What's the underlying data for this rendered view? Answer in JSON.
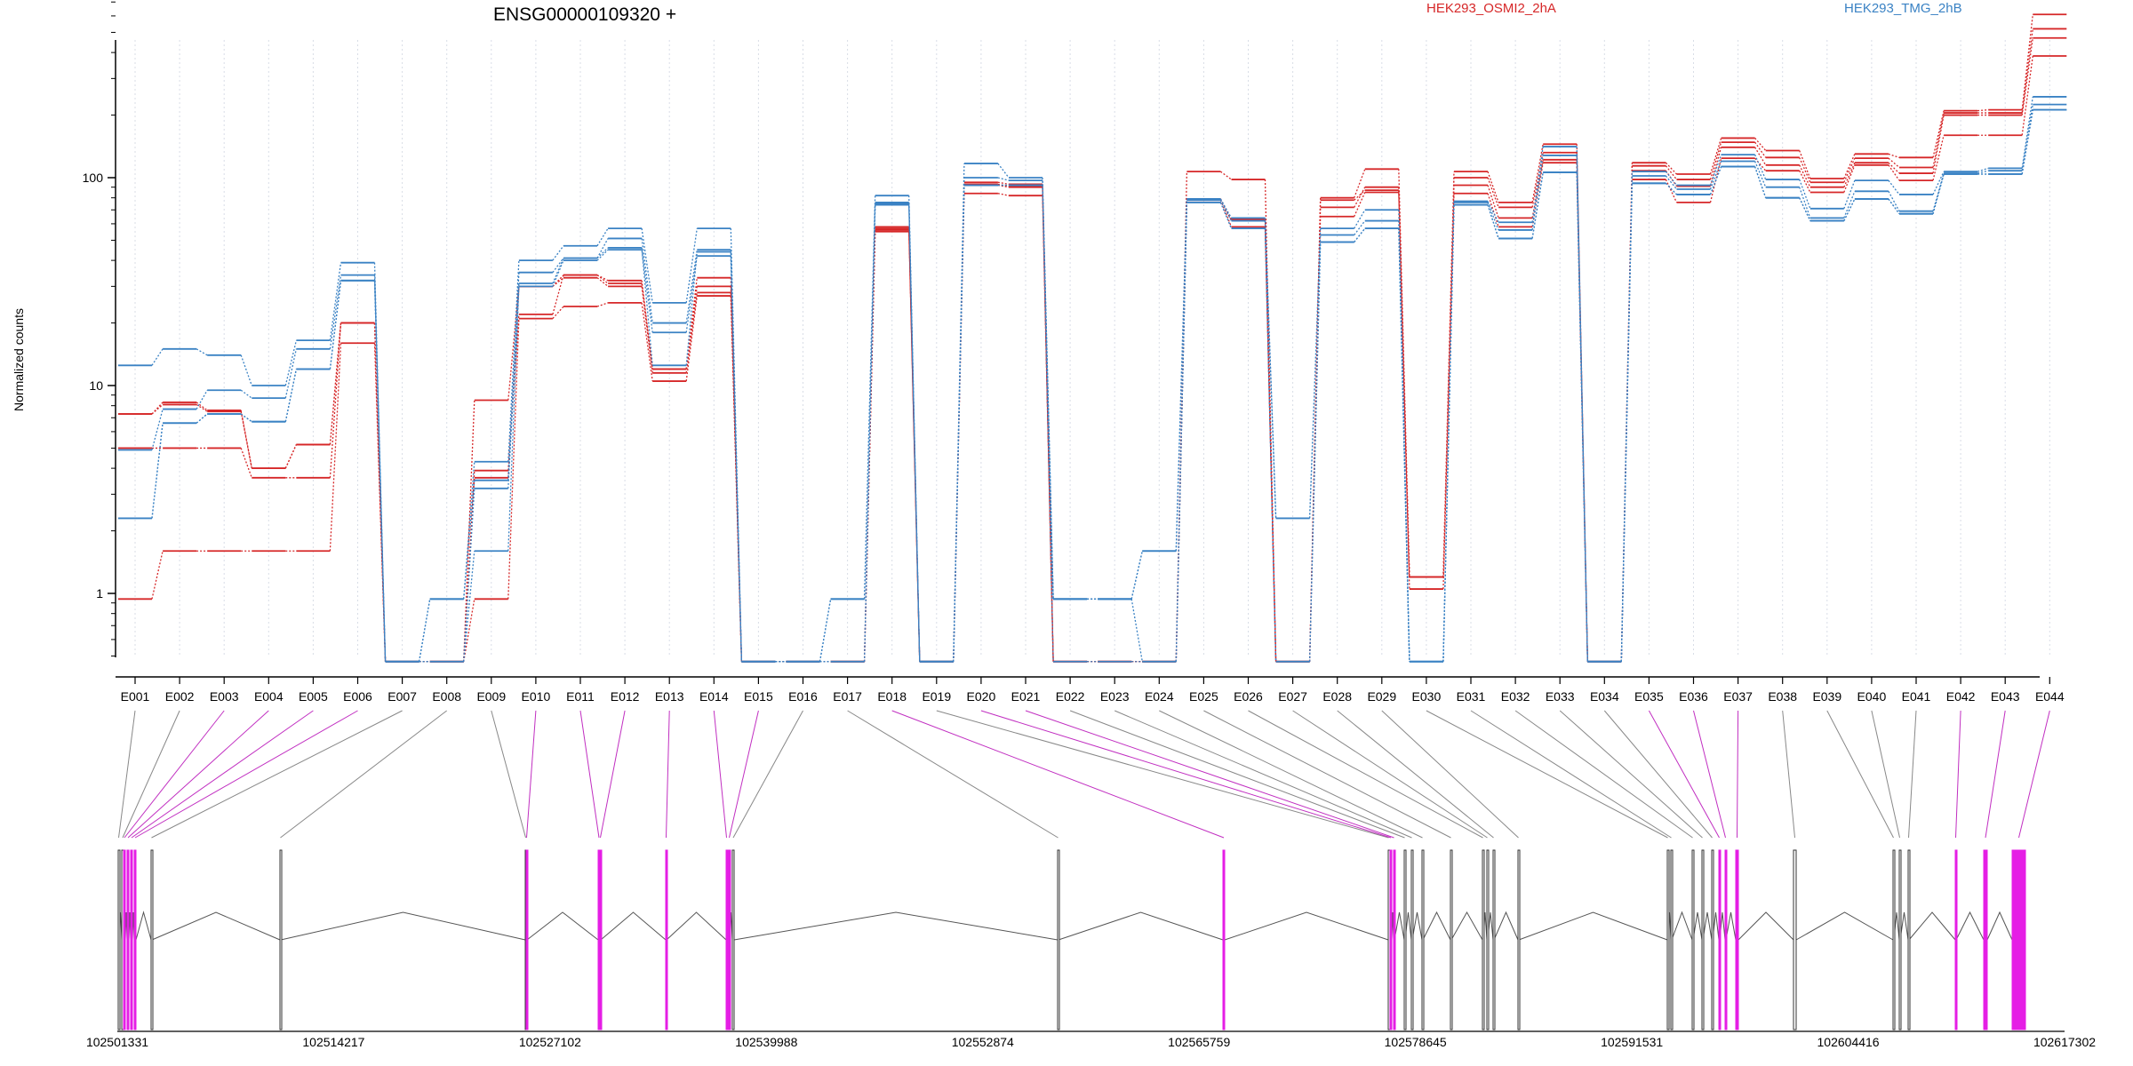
{
  "chart_data": {
    "type": "line",
    "title": "ENSG00000109320 +",
    "ylabel": "Normalized counts",
    "xlabel": "",
    "y_scale": "log",
    "ylim": [
      0.47,
      820
    ],
    "y_ticks": [
      1,
      10,
      100
    ],
    "grid": "vertical dotted lines at exon centers",
    "legend_placement": "top-right",
    "categories": [
      "E001",
      "E002",
      "E003",
      "E004",
      "E005",
      "E006",
      "E007",
      "E008",
      "E009",
      "E010",
      "E011",
      "E012",
      "E013",
      "E014",
      "E015",
      "E016",
      "E017",
      "E018",
      "E019",
      "E020",
      "E021",
      "E022",
      "E023",
      "E024",
      "E025",
      "E026",
      "E027",
      "E028",
      "E029",
      "E030",
      "E031",
      "E032",
      "E033",
      "E034",
      "E035",
      "E036",
      "E037",
      "E038",
      "E039",
      "E040",
      "E041",
      "E042",
      "E043",
      "E044"
    ],
    "groups": [
      {
        "name": "HEK293_OSMI2_2hA",
        "color": "#d62728"
      },
      {
        "name": "HEK293_TMG_2hB",
        "color": "#3a82c4"
      }
    ],
    "series": [
      {
        "group": "HEK293_OSMI2_2hA",
        "values": [
          7.3,
          8.3,
          7.6,
          4.0,
          5.2,
          20,
          0.47,
          0.47,
          3.9,
          22,
          34,
          32,
          12,
          33,
          0.47,
          0.47,
          0.47,
          58,
          0.47,
          95,
          93,
          0.47,
          0.47,
          0.47,
          107,
          98,
          0.47,
          80,
          110,
          1.2,
          107,
          76,
          145,
          0.47,
          118,
          104,
          155,
          135,
          99,
          130,
          125,
          210,
          212,
          610
        ]
      },
      {
        "group": "HEK293_OSMI2_2hA",
        "values": [
          7.3,
          8.1,
          7.5,
          4.0,
          5.2,
          20,
          0.47,
          0.47,
          8.5,
          30,
          33,
          30,
          11.5,
          28,
          0.47,
          0.47,
          0.47,
          56,
          0.47,
          92,
          90,
          0.47,
          0.47,
          0.47,
          79,
          62,
          0.47,
          72,
          90,
          1.2,
          92,
          64,
          122,
          0.47,
          108,
          91,
          140,
          115,
          90,
          118,
          105,
          200,
          200,
          470
        ]
      },
      {
        "group": "HEK293_OSMI2_2hA",
        "values": [
          0.94,
          1.6,
          1.6,
          1.6,
          1.6,
          16,
          0.47,
          0.47,
          0.94,
          21,
          24,
          25,
          10.5,
          27,
          0.47,
          0.47,
          0.47,
          55,
          0.47,
          84,
          82,
          0.47,
          0.47,
          0.47,
          78,
          58,
          0.47,
          65,
          85,
          1.05,
          84,
          58,
          118,
          0.47,
          98,
          76,
          124,
          108,
          85,
          115,
          97,
          160,
          160,
          385
        ]
      },
      {
        "group": "HEK293_OSMI2_2hA",
        "values": [
          5.0,
          5.0,
          5.0,
          3.6,
          3.6,
          20,
          0.47,
          0.47,
          3.6,
          30,
          34,
          31,
          12,
          30,
          0.47,
          0.47,
          0.47,
          57,
          0.47,
          93,
          91,
          0.47,
          0.47,
          0.47,
          79,
          63,
          0.47,
          78,
          87,
          1.2,
          100,
          72,
          132,
          0.47,
          114,
          98,
          148,
          125,
          95,
          124,
          112,
          205,
          205,
          520
        ]
      },
      {
        "group": "HEK293_TMG_2hB",
        "values": [
          12.5,
          15,
          14,
          10,
          16.5,
          39,
          0.47,
          0.94,
          4.3,
          40,
          47,
          57,
          25,
          57,
          0.47,
          0.47,
          0.94,
          82,
          0.47,
          117,
          100,
          0.94,
          0.94,
          1.6,
          79,
          64,
          2.3,
          57,
          70,
          0.47,
          77,
          61,
          141,
          0.47,
          107,
          92,
          129,
          98,
          71,
          97,
          83,
          107,
          111,
          245
        ]
      },
      {
        "group": "HEK293_TMG_2hB",
        "values": [
          4.9,
          7.7,
          9.5,
          8.7,
          15,
          34,
          0.47,
          0.94,
          3.5,
          35,
          41,
          51,
          20,
          45,
          0.47,
          0.47,
          0.94,
          76,
          0.47,
          100,
          97,
          0.94,
          0.94,
          1.6,
          78,
          62,
          2.3,
          53,
          62,
          0.47,
          76,
          56,
          128,
          0.47,
          102,
          88,
          120,
          90,
          64,
          86,
          69,
          105,
          108,
          225
        ]
      },
      {
        "group": "HEK293_TMG_2hB",
        "values": [
          2.3,
          6.6,
          7.3,
          6.7,
          12,
          32,
          0.47,
          0.47,
          3.2,
          31,
          41,
          46,
          12.5,
          44,
          0.47,
          0.47,
          0.47,
          75,
          0.47,
          92,
          92,
          0.94,
          0.94,
          0.47,
          76,
          57,
          0.47,
          49,
          57,
          0.47,
          74,
          51,
          106,
          0.47,
          94,
          83,
          113,
          80,
          62,
          79,
          67,
          104,
          104,
          212
        ]
      },
      {
        "group": "HEK293_TMG_2hB",
        "values": [
          2.3,
          6.6,
          7.3,
          6.7,
          12,
          32,
          0.47,
          0.47,
          1.6,
          30,
          40,
          45,
          18,
          42,
          0.47,
          0.47,
          0.47,
          74,
          0.47,
          92,
          92,
          0.47,
          0.47,
          0.47,
          76,
          57,
          0.47,
          49,
          57,
          0.47,
          74,
          51,
          106,
          0.47,
          94,
          83,
          113,
          80,
          62,
          79,
          67,
          104,
          104,
          212
        ]
      }
    ]
  },
  "gene_model": {
    "coordinate_ticks": [
      "102501331",
      "102514217",
      "102527102",
      "102539988",
      "102552874",
      "102565759",
      "102578645",
      "102591531",
      "102604416",
      "102617302"
    ],
    "coordinate_range": [
      102501331,
      102617302
    ],
    "highlighted_exons": [
      "E003",
      "E004",
      "E005",
      "E006",
      "E010",
      "E011",
      "E012",
      "E013",
      "E014",
      "E015",
      "E018",
      "E020",
      "E021",
      "E035",
      "E036",
      "E037",
      "E042",
      "E043",
      "E044"
    ],
    "highlight_color": "#e51ee5",
    "exon_color": "#ffffff",
    "line_color": "#808080"
  }
}
